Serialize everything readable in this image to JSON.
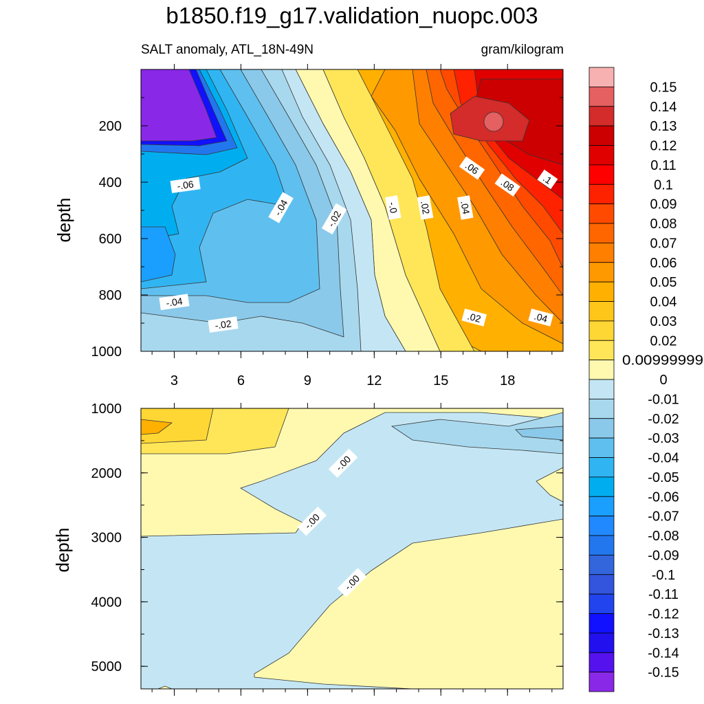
{
  "title": "b1850.f19_g17.validation_nuopc.003",
  "subtitle_left": "SALT anomaly, ATL_18N-49N",
  "subtitle_right": "gram/kilogram",
  "chart_data": [
    {
      "type": "heatmap",
      "panel": "top",
      "x": [
        3,
        6,
        9,
        12,
        15,
        18
      ],
      "xticks": [
        "3",
        "6",
        "9",
        "12",
        "15",
        "18"
      ],
      "xlim": [
        1.5,
        20.5
      ],
      "ylabel": "depth",
      "ylim": [
        1000,
        0
      ],
      "yticks": [
        "200",
        "400",
        "600",
        "800",
        "1000"
      ],
      "y": [
        200,
        400,
        600,
        800,
        1000
      ],
      "contour_labels": [
        {
          "text": "-.06",
          "x": 3.5,
          "y": 410
        },
        {
          "text": "-.04",
          "x": 7.8,
          "y": 490
        },
        {
          "text": "-.02",
          "x": 10.2,
          "y": 530
        },
        {
          "text": "-.0",
          "x": 12.85,
          "y": 490
        },
        {
          "text": ".02",
          "x": 14.3,
          "y": 490
        },
        {
          "text": ".04",
          "x": 16.1,
          "y": 490
        },
        {
          "text": ".06",
          "x": 16.4,
          "y": 350
        },
        {
          "text": ".08",
          "x": 18.0,
          "y": 410
        },
        {
          "text": ".1",
          "x": 19.8,
          "y": 390
        },
        {
          "text": "-.04",
          "x": 3.0,
          "y": 825
        },
        {
          "text": "-.02",
          "x": 5.2,
          "y": 905
        },
        {
          "text": ".02",
          "x": 16.5,
          "y": 880
        },
        {
          "text": ".04",
          "x": 19.5,
          "y": 880
        }
      ]
    },
    {
      "type": "heatmap",
      "panel": "bottom",
      "xlim": [
        1.5,
        20.5
      ],
      "ylabel": "depth",
      "ylim": [
        5350,
        1000
      ],
      "yticks": [
        "1000",
        "2000",
        "3000",
        "4000",
        "5000"
      ],
      "y": [
        1000,
        2000,
        3000,
        4000,
        5000
      ],
      "contour_labels": [
        {
          "text": "-.00",
          "x": 10.6,
          "y": 1850
        },
        {
          "text": "-.00",
          "x": 9.2,
          "y": 2750
        },
        {
          "text": "-.00",
          "x": 11.0,
          "y": 3700
        }
      ]
    }
  ],
  "colorbar": {
    "labels": [
      "0.15",
      "0.14",
      "0.13",
      "0.12",
      "0.11",
      "0.1",
      "0.09",
      "0.08",
      "0.07",
      "0.06",
      "0.05",
      "0.04",
      "0.03",
      "0.02",
      "0.00999999",
      "0",
      "-0.01",
      "-0.02",
      "-0.03",
      "-0.04",
      "-0.05",
      "-0.06",
      "-0.07",
      "-0.08",
      "-0.09",
      "-0.1",
      "-0.11",
      "-0.12",
      "-0.13",
      "-0.14",
      "-0.15"
    ],
    "colors": [
      "#f8b1b1",
      "#e56060",
      "#d42b2b",
      "#cc0000",
      "#e00000",
      "#ff0000",
      "#ff2200",
      "#ff4a00",
      "#ff6600",
      "#ff7f00",
      "#ff9900",
      "#ffb000",
      "#ffc61a",
      "#ffd735",
      "#ffe658",
      "#fff9b0",
      "#c4e6f4",
      "#a8d8ee",
      "#8ac9ea",
      "#5fc0ef",
      "#31b5f2",
      "#00aef0",
      "#1a9fff",
      "#2089ff",
      "#2277ee",
      "#3366dd",
      "#3355dd",
      "#2244ee",
      "#1111ff",
      "#2211ee",
      "#5511ee",
      "#8a28e8"
    ]
  }
}
